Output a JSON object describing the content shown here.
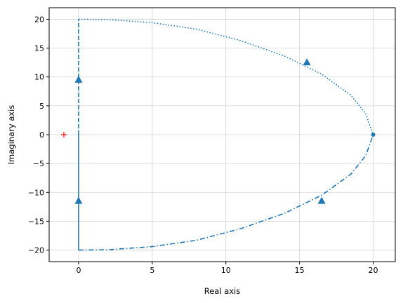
{
  "chart_data": {
    "type": "line",
    "title": "",
    "xlabel": "Real axis",
    "ylabel": "Imaginary axis",
    "xlim": [
      -2,
      21.5
    ],
    "ylim": [
      -22,
      22
    ],
    "xticks": [
      0,
      5,
      10,
      15,
      20
    ],
    "yticks": [
      -20,
      -15,
      -10,
      -5,
      0,
      5,
      10,
      15,
      20
    ],
    "grid": true,
    "line_color": "#1f77b4",
    "critical_point_color": "#ff0000",
    "critical_point": {
      "x": -1,
      "y": 0,
      "marker": "+"
    },
    "series": [
      {
        "style": "solid",
        "points": [
          [
            0,
            0
          ],
          [
            0,
            -20
          ]
        ]
      },
      {
        "style": "dashed",
        "points": [
          [
            0,
            0
          ],
          [
            0,
            20
          ]
        ]
      },
      {
        "style": "dotted",
        "points": [
          [
            0,
            20
          ],
          [
            2,
            19.95
          ],
          [
            5,
            19.4
          ],
          [
            8,
            18.3
          ],
          [
            11,
            16.3
          ],
          [
            14,
            13.6
          ],
          [
            16.5,
            10.5
          ],
          [
            18.5,
            6.8
          ],
          [
            19.5,
            3.6
          ],
          [
            20,
            0
          ]
        ]
      },
      {
        "style": "dashdot",
        "points": [
          [
            0,
            -20
          ],
          [
            2,
            -19.95
          ],
          [
            5,
            -19.4
          ],
          [
            8,
            -18.3
          ],
          [
            11,
            -16.3
          ],
          [
            14,
            -13.6
          ],
          [
            16.5,
            -10.5
          ],
          [
            18.5,
            -6.8
          ],
          [
            19.5,
            -3.6
          ],
          [
            20,
            0
          ]
        ]
      }
    ],
    "arrows": [
      {
        "x": 0,
        "y": 9.5,
        "direction": "up"
      },
      {
        "x": 0,
        "y": -11.5,
        "direction": "up"
      },
      {
        "x": 15.5,
        "y": 12.5,
        "direction": "up"
      },
      {
        "x": 16.5,
        "y": -11.5,
        "direction": "up"
      }
    ],
    "end_point": {
      "x": 20,
      "y": 0
    }
  }
}
